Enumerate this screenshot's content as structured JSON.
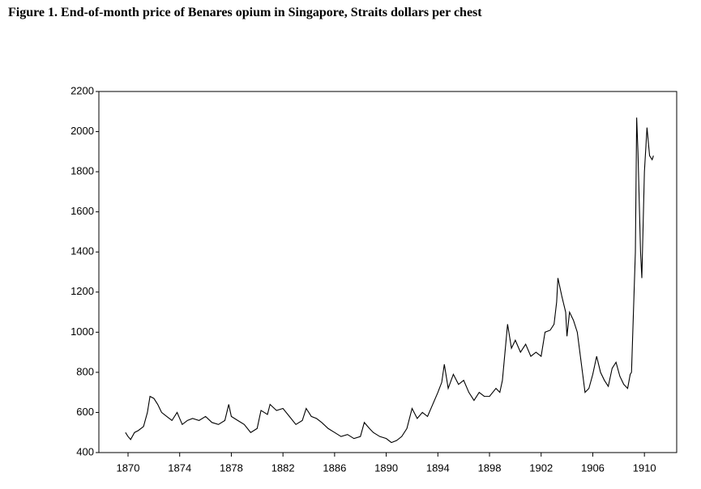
{
  "chart_data": {
    "type": "line",
    "title": "Figure 1.  End-of-month price of Benares opium in Singapore, Straits dollars per chest",
    "x": [
      1869.8,
      1870.0,
      1870.2,
      1870.5,
      1870.8,
      1871.2,
      1871.5,
      1871.7,
      1872.0,
      1872.3,
      1872.6,
      1873.0,
      1873.4,
      1873.8,
      1874.2,
      1874.6,
      1875.0,
      1875.5,
      1876.0,
      1876.5,
      1877.0,
      1877.5,
      1877.8,
      1878.0,
      1878.5,
      1879.0,
      1879.5,
      1880.0,
      1880.3,
      1880.8,
      1881.0,
      1881.5,
      1882.0,
      1882.5,
      1883.0,
      1883.5,
      1883.8,
      1884.2,
      1884.6,
      1885.0,
      1885.5,
      1886.0,
      1886.5,
      1887.0,
      1887.5,
      1888.0,
      1888.3,
      1888.7,
      1889.0,
      1889.5,
      1890.0,
      1890.4,
      1890.8,
      1891.2,
      1891.6,
      1892.0,
      1892.4,
      1892.8,
      1893.2,
      1893.6,
      1894.0,
      1894.3,
      1894.5,
      1894.8,
      1895.2,
      1895.6,
      1896.0,
      1896.4,
      1896.8,
      1897.2,
      1897.6,
      1898.0,
      1898.5,
      1898.8,
      1899.0,
      1899.4,
      1899.7,
      1900.0,
      1900.4,
      1900.8,
      1901.2,
      1901.6,
      1902.0,
      1902.3,
      1902.7,
      1903.0,
      1903.2,
      1903.3,
      1903.6,
      1903.9,
      1904.0,
      1904.2,
      1904.5,
      1904.8,
      1905.0,
      1905.2,
      1905.4,
      1905.7,
      1906.0,
      1906.3,
      1906.6,
      1906.9,
      1907.2,
      1907.5,
      1907.8,
      1908.1,
      1908.4,
      1908.7,
      1908.9,
      1909.0,
      1909.1,
      1909.3,
      1909.4,
      1909.5,
      1909.7,
      1909.8,
      1910.0,
      1910.2,
      1910.4,
      1910.6,
      1910.7
    ],
    "values": [
      500,
      480,
      465,
      500,
      510,
      530,
      600,
      680,
      670,
      640,
      600,
      580,
      560,
      600,
      540,
      560,
      570,
      560,
      580,
      550,
      540,
      560,
      640,
      580,
      560,
      540,
      500,
      520,
      610,
      590,
      640,
      610,
      620,
      580,
      540,
      560,
      620,
      580,
      570,
      550,
      520,
      500,
      480,
      490,
      470,
      480,
      550,
      520,
      500,
      480,
      470,
      450,
      460,
      480,
      520,
      620,
      570,
      600,
      580,
      640,
      700,
      750,
      840,
      720,
      790,
      740,
      760,
      700,
      660,
      700,
      680,
      680,
      720,
      700,
      760,
      1040,
      920,
      960,
      900,
      940,
      880,
      900,
      880,
      1000,
      1010,
      1040,
      1150,
      1270,
      1180,
      1100,
      980,
      1100,
      1060,
      1000,
      900,
      800,
      700,
      720,
      790,
      880,
      800,
      760,
      730,
      820,
      850,
      780,
      740,
      720,
      790,
      800,
      1000,
      1400,
      2070,
      1900,
      1400,
      1270,
      1800,
      2020,
      1880,
      1860,
      1880
    ],
    "color": "#000000",
    "xlim": [
      1867.74,
      1912.5
    ],
    "xticks": [
      1870,
      1874,
      1878,
      1882,
      1886,
      1890,
      1894,
      1898,
      1902,
      1906,
      1910
    ],
    "ylim": [
      400,
      2200
    ],
    "yticks": [
      400,
      600,
      800,
      1000,
      1200,
      1400,
      1600,
      1800,
      2000,
      2200
    ]
  }
}
